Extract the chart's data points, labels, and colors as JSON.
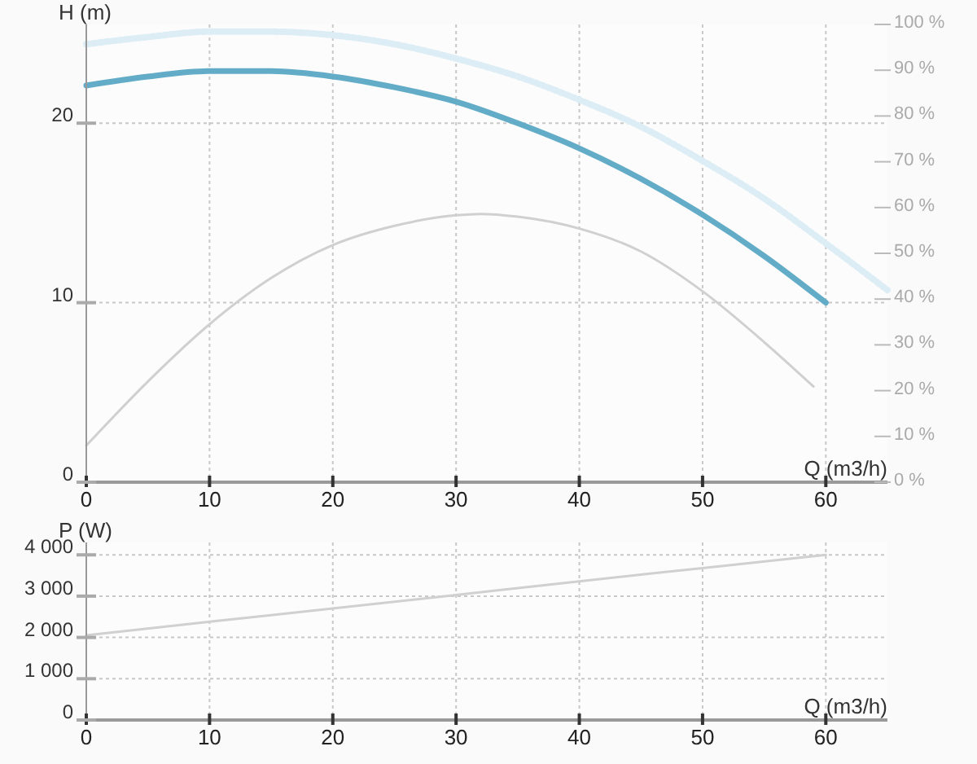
{
  "chart_data": [
    {
      "type": "line",
      "ylabel": "H (m)",
      "xlabel": "Q (m3/h)",
      "xlim": [
        0,
        65
      ],
      "xticks": [
        0,
        10,
        20,
        30,
        40,
        50,
        60
      ],
      "ylim": [
        0,
        25.5
      ],
      "yticks": [
        0,
        10,
        20
      ],
      "y2lim": [
        0,
        100
      ],
      "y2ticks": [
        {
          "value": 0,
          "label": "0 %"
        },
        {
          "value": 10,
          "label": "10 %"
        },
        {
          "value": 20,
          "label": "20 %"
        },
        {
          "value": 30,
          "label": "30 %"
        },
        {
          "value": 40,
          "label": "40 %"
        },
        {
          "value": 50,
          "label": "50 %"
        },
        {
          "value": 60,
          "label": "60 %"
        },
        {
          "value": 70,
          "label": "70 %"
        },
        {
          "value": 80,
          "label": "80 %"
        },
        {
          "value": 90,
          "label": "90 %"
        },
        {
          "value": 100,
          "label": "100 %"
        }
      ],
      "grid": true,
      "series": [
        {
          "color": "#dcedf5",
          "line_style": "dotted",
          "x": [
            0,
            5,
            10,
            15,
            20,
            25,
            30,
            35,
            40,
            45,
            50,
            55,
            60,
            65
          ],
          "values": [
            24.4,
            24.8,
            25.1,
            25.1,
            24.9,
            24.4,
            23.6,
            22.6,
            21.3,
            19.8,
            17.9,
            15.8,
            13.3,
            10.7
          ]
        },
        {
          "color": "#d0d0d0",
          "axis": "y2",
          "x": [
            0,
            5,
            10,
            15,
            20,
            25,
            30,
            32,
            35,
            40,
            45,
            50,
            55,
            59
          ],
          "values": [
            8,
            22,
            34.5,
            44.6,
            51.8,
            56,
            58.3,
            58.6,
            58,
            55.4,
            50.4,
            41.7,
            30.6,
            20.9
          ]
        },
        {
          "color": "#63acc8",
          "x": [
            0,
            5,
            10,
            15,
            20,
            25,
            30,
            35,
            40,
            45,
            50,
            55,
            60
          ],
          "values": [
            22.1,
            22.6,
            22.9,
            22.9,
            22.6,
            22,
            21.2,
            20,
            18.6,
            16.9,
            14.9,
            12.6,
            10
          ]
        }
      ]
    },
    {
      "type": "line",
      "ylabel": "P (W)",
      "xlabel": "Q (m3/h)",
      "xlim": [
        0,
        65
      ],
      "xticks": [
        0,
        10,
        20,
        30,
        40,
        50,
        60
      ],
      "ylim": [
        0,
        4300
      ],
      "yticks": [
        0,
        {
          "value": 1000,
          "label": "1 000"
        },
        {
          "value": 2000,
          "label": "2 000"
        },
        {
          "value": 3000,
          "label": "3 000"
        },
        {
          "value": 4000,
          "label": "4 000"
        }
      ],
      "grid": true,
      "series": [
        {
          "color": "#d0d0d0",
          "x": [
            0,
            10,
            20,
            30,
            40,
            50,
            60
          ],
          "values": [
            2050,
            2380,
            2700,
            3030,
            3360,
            3680,
            4000
          ]
        }
      ]
    }
  ]
}
